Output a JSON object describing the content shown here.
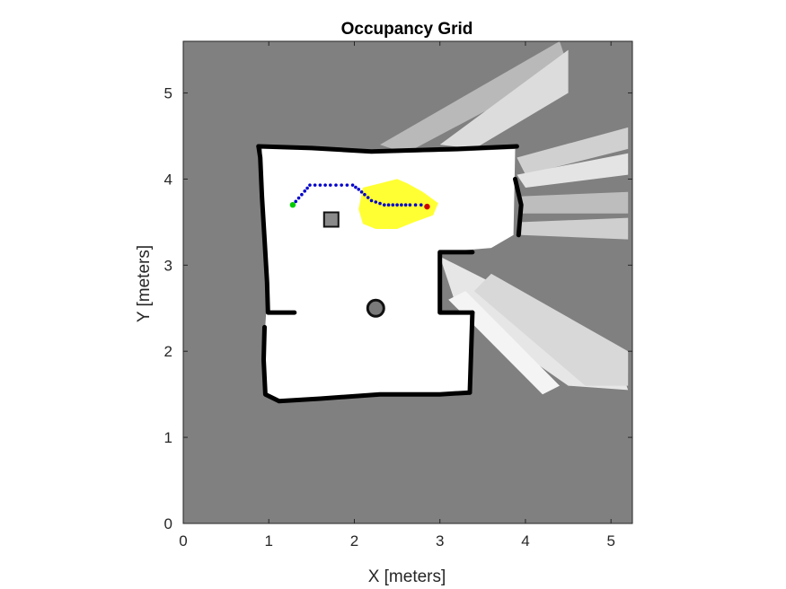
{
  "colors": {
    "unknown": "#808080",
    "free": "#ffffff",
    "occupied": "#000000",
    "explored": "#ffff33",
    "path": "#0000cc",
    "start": "#00cc00",
    "goal": "#cc0000",
    "axis": "#262626"
  },
  "chart_data": {
    "type": "heatmap",
    "title": "Occupancy Grid",
    "xlabel": "X [meters]",
    "ylabel": "Y [meters]",
    "xlim": [
      0,
      5.25
    ],
    "ylim": [
      0,
      5.6
    ],
    "xticks": [
      "0",
      "1",
      "2",
      "3",
      "4",
      "5"
    ],
    "yticks": [
      "0",
      "1",
      "2",
      "3",
      "4",
      "5"
    ],
    "grid": false,
    "start": [
      1.28,
      3.7
    ],
    "goal": [
      2.85,
      3.68
    ],
    "path": [
      [
        1.28,
        3.7
      ],
      [
        1.35,
        3.78
      ],
      [
        1.42,
        3.86
      ],
      [
        1.48,
        3.93
      ],
      [
        1.6,
        3.93
      ],
      [
        1.72,
        3.93
      ],
      [
        1.85,
        3.93
      ],
      [
        1.98,
        3.93
      ],
      [
        2.05,
        3.88
      ],
      [
        2.12,
        3.82
      ],
      [
        2.2,
        3.75
      ],
      [
        2.35,
        3.7
      ],
      [
        2.5,
        3.7
      ],
      [
        2.65,
        3.7
      ],
      [
        2.78,
        3.7
      ],
      [
        2.85,
        3.68
      ]
    ],
    "walls": [
      [
        [
          0.88,
          4.38
        ],
        [
          0.9,
          4.25
        ],
        [
          0.92,
          3.8
        ],
        [
          0.95,
          3.3
        ],
        [
          0.98,
          2.8
        ],
        [
          0.99,
          2.45
        ],
        [
          1.3,
          2.45
        ]
      ],
      [
        [
          0.95,
          2.28
        ],
        [
          0.94,
          1.9
        ],
        [
          0.96,
          1.5
        ],
        [
          1.12,
          1.42
        ],
        [
          1.6,
          1.45
        ],
        [
          2.3,
          1.5
        ],
        [
          3.0,
          1.5
        ],
        [
          3.35,
          1.52
        ]
      ],
      [
        [
          3.35,
          1.52
        ],
        [
          3.38,
          2.45
        ]
      ],
      [
        [
          3.38,
          2.45
        ],
        [
          3.0,
          2.45
        ],
        [
          3.0,
          3.15
        ],
        [
          3.38,
          3.15
        ]
      ],
      [
        [
          0.88,
          4.38
        ],
        [
          1.5,
          4.36
        ],
        [
          2.2,
          4.32
        ],
        [
          3.2,
          4.35
        ],
        [
          3.9,
          4.38
        ]
      ],
      [
        [
          3.88,
          4.0
        ],
        [
          3.95,
          3.7
        ],
        [
          3.92,
          3.35
        ]
      ]
    ],
    "obstacles": [
      {
        "type": "square",
        "x": 1.73,
        "y": 3.53
      },
      {
        "type": "round",
        "x": 2.25,
        "y": 2.5
      }
    ],
    "explored_region": [
      [
        2.1,
        3.9
      ],
      [
        2.3,
        3.95
      ],
      [
        2.5,
        4.0
      ],
      [
        2.62,
        3.95
      ],
      [
        2.8,
        3.85
      ],
      [
        2.98,
        3.72
      ],
      [
        2.92,
        3.58
      ],
      [
        2.7,
        3.5
      ],
      [
        2.5,
        3.42
      ],
      [
        2.25,
        3.42
      ],
      [
        2.1,
        3.48
      ],
      [
        2.05,
        3.65
      ]
    ],
    "free_region": [
      [
        0.92,
        4.36
      ],
      [
        1.5,
        4.34
      ],
      [
        2.2,
        4.3
      ],
      [
        3.2,
        4.32
      ],
      [
        3.88,
        4.35
      ],
      [
        3.86,
        3.35
      ],
      [
        3.6,
        3.2
      ],
      [
        3.0,
        3.15
      ],
      [
        3.0,
        2.45
      ],
      [
        3.35,
        2.45
      ],
      [
        3.35,
        1.52
      ],
      [
        2.3,
        1.5
      ],
      [
        1.6,
        1.45
      ],
      [
        1.12,
        1.42
      ],
      [
        0.96,
        1.5
      ],
      [
        0.94,
        1.9
      ],
      [
        0.96,
        2.3
      ],
      [
        0.99,
        2.8
      ],
      [
        0.95,
        3.3
      ],
      [
        0.92,
        3.8
      ]
    ]
  }
}
